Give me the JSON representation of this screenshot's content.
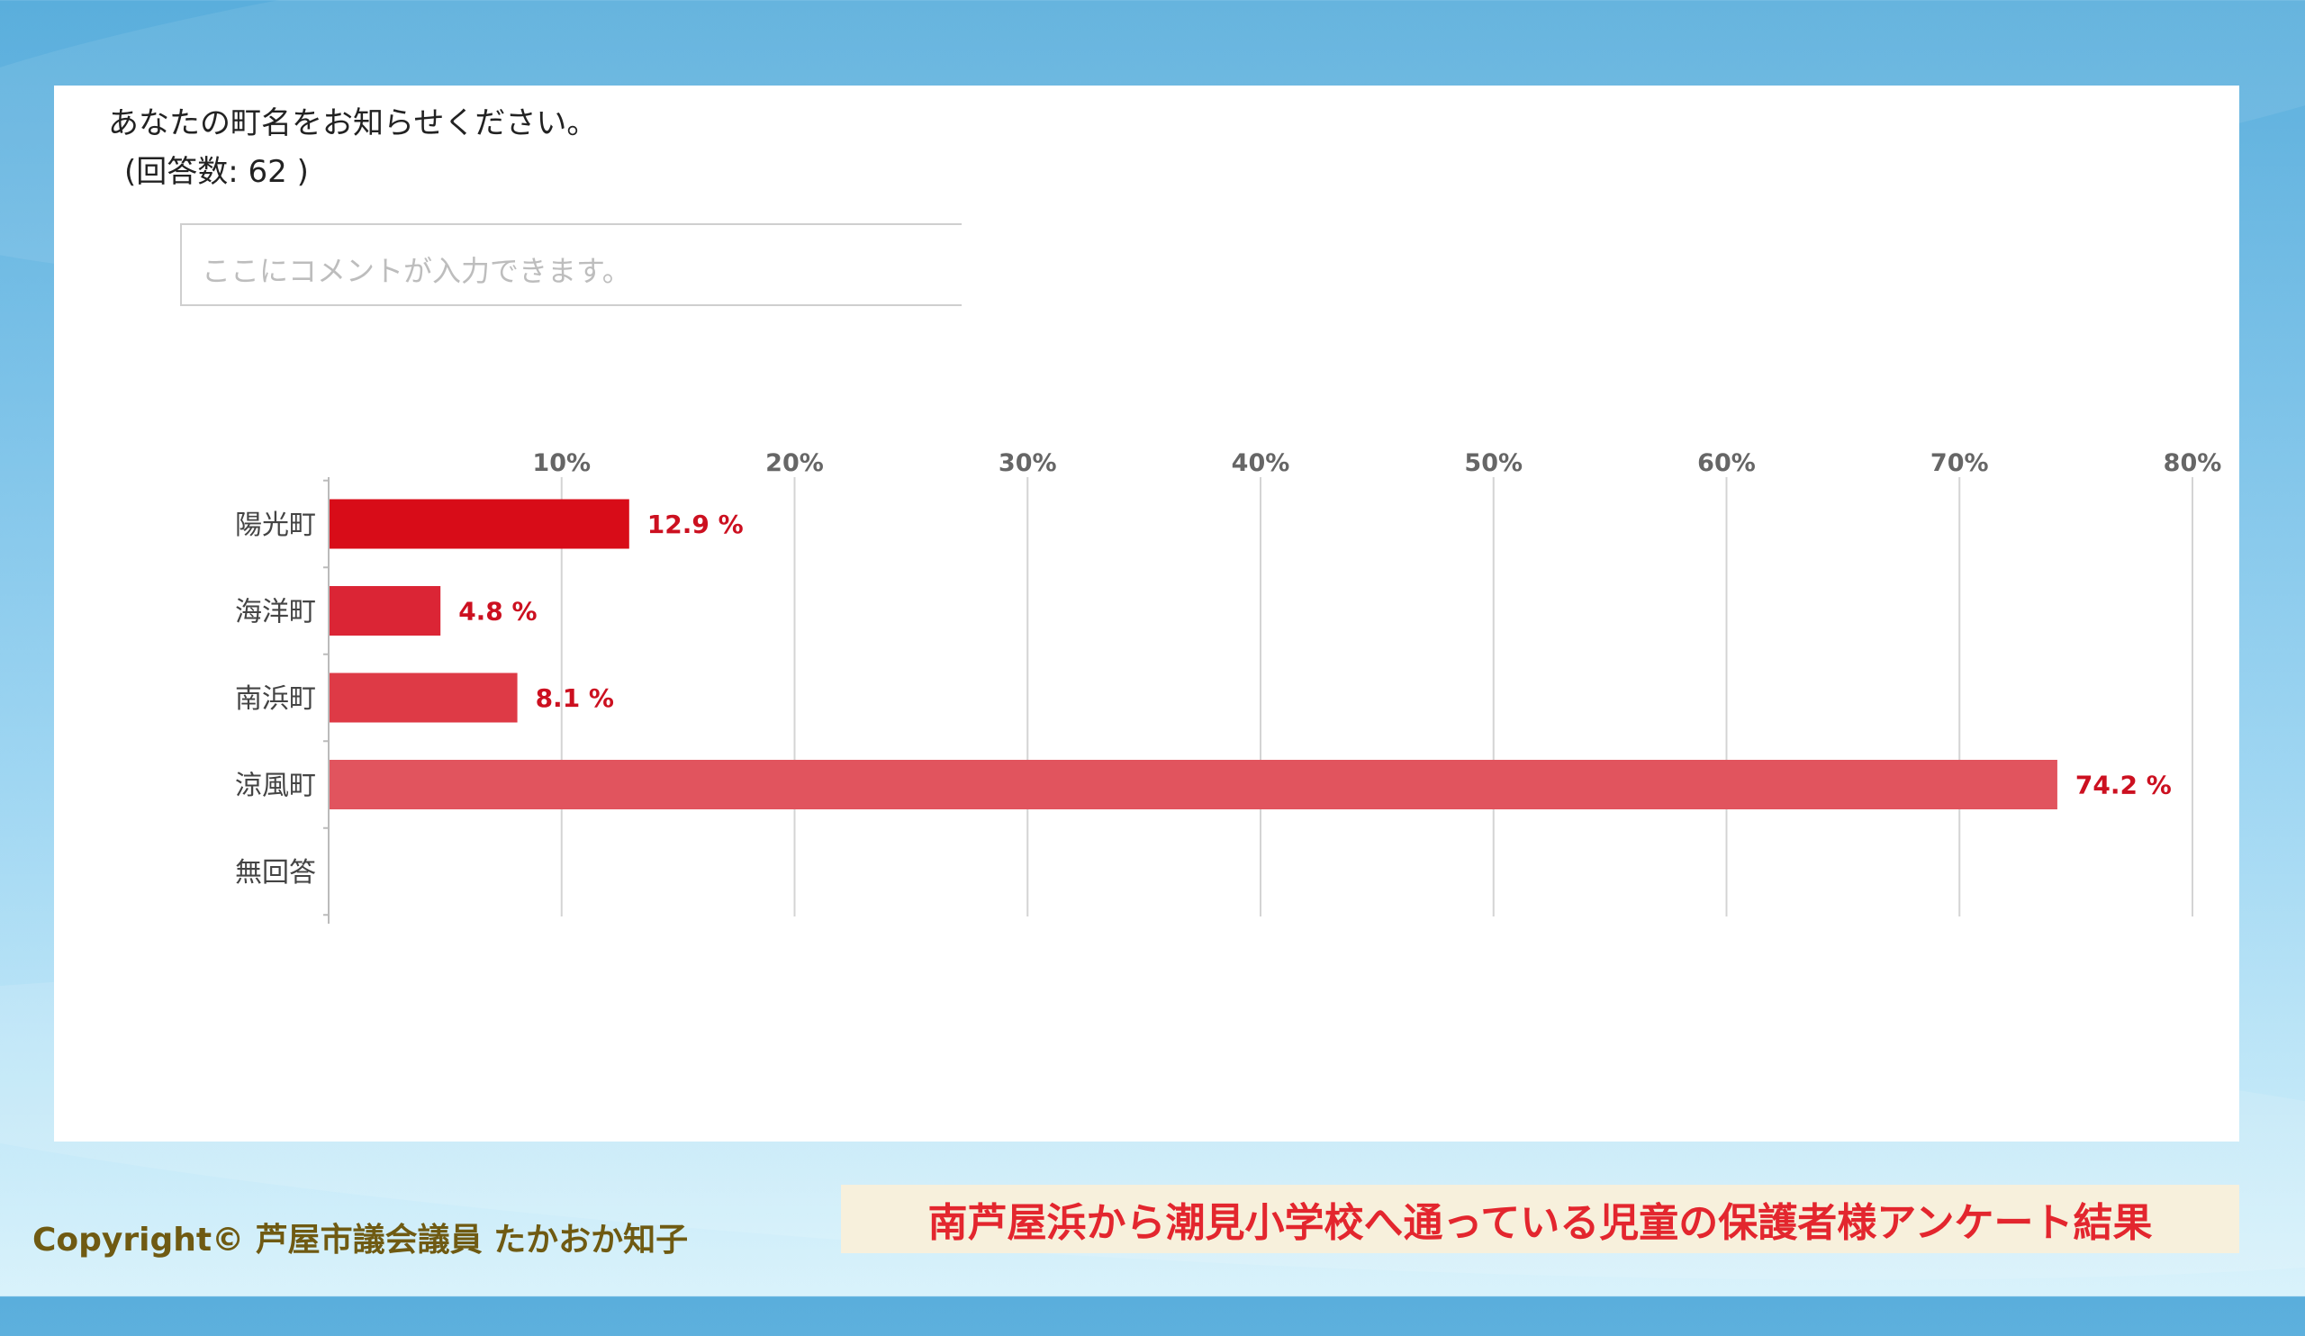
{
  "question": {
    "text": "あなたの町名をお知らせください。",
    "response_count": "(回答数: 62 )"
  },
  "comment": {
    "placeholder": "ここにコメントが入力できます。"
  },
  "chart_data": {
    "type": "bar",
    "orientation": "horizontal",
    "categories": [
      "陽光町",
      "海洋町",
      "南浜町",
      "涼風町",
      "無回答"
    ],
    "values": [
      12.9,
      4.8,
      8.1,
      74.2,
      0
    ],
    "value_labels": [
      "12.9 %",
      "4.8 %",
      "8.1 %",
      "74.2 %",
      ""
    ],
    "xlim": [
      0,
      80
    ],
    "x_ticks": [
      "10%",
      "20%",
      "30%",
      "40%",
      "50%",
      "60%",
      "70%",
      "80%"
    ],
    "x_tick_values": [
      10,
      20,
      30,
      40,
      50,
      60,
      70,
      80
    ],
    "grid": true,
    "bar_colors": [
      "#d80c18",
      "#db2535",
      "#de3a46",
      "#e1545e",
      "#e1545e"
    ],
    "label_color": "#cc1020"
  },
  "footer": {
    "copyright": "Copyright© 芦屋市議会議員 たかおか知子",
    "title": "南芦屋浜から潮見小学校へ通っている児童の保護者様アンケート結果"
  }
}
